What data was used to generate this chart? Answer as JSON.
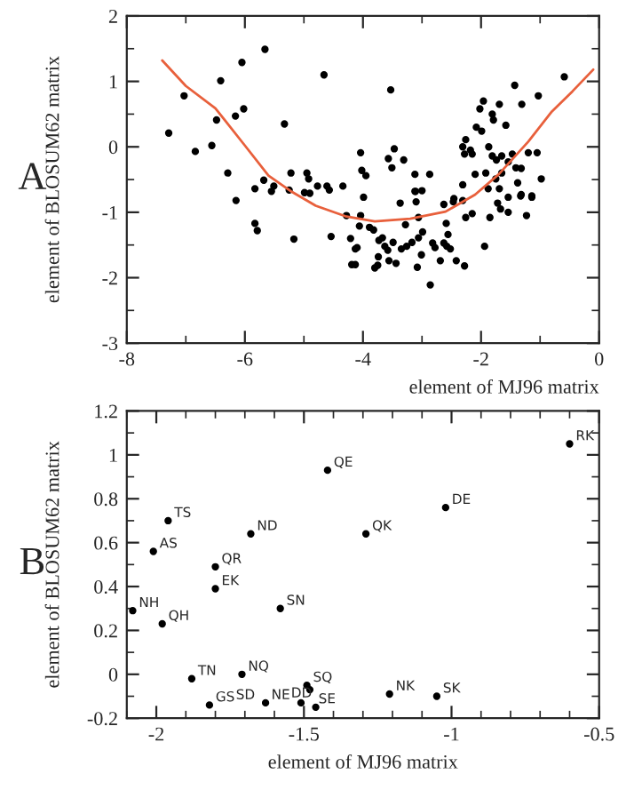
{
  "chart_data": [
    {
      "type": "scatter",
      "xlabel": "element of MJ96 matrix",
      "ylabel": "element of BLOSUM62 matrix",
      "xlim": [
        -8,
        0
      ],
      "ylim": [
        -3,
        2
      ],
      "xticks": [
        -8,
        -6,
        -4,
        -2,
        0
      ],
      "yticks": [
        -3,
        -2,
        -1,
        0,
        1,
        2
      ],
      "grid": false,
      "marker": "circle",
      "annotations": [
        "A"
      ],
      "series": [
        {
          "color": "#000000",
          "x": [
            -7.29,
            -7.03,
            -6.84,
            -6.56,
            -6.41,
            -6.48,
            -6.29,
            -6.15,
            -6.16,
            -6.05,
            -6.02,
            -5.66,
            -5.83,
            -5.68,
            -5.55,
            -5.51,
            -5.33,
            -5.25,
            -5.22,
            -4.66,
            -4.61,
            -4.57,
            -4.34,
            -4.77,
            -4.95,
            -4.92,
            -4.99,
            -4.9,
            -4.04,
            -4.02,
            -3.95,
            -3.99,
            -3.53,
            -3.57,
            -3.51,
            -3.47,
            -3.31,
            -3.12,
            -2.87,
            -3.11,
            -3.0,
            -2.31,
            -2.28,
            -2.26,
            -2.18,
            -2.15,
            -2.08,
            -1.99,
            -2.02,
            -1.96,
            -1.81,
            -1.79,
            -1.69,
            -1.58,
            -1.43,
            -1.31,
            -1.03,
            -0.59,
            -1.87,
            -1.81,
            -1.74,
            -1.65,
            -1.54,
            -1.47,
            -1.41,
            -1.32,
            -1.2,
            -1.05,
            -0.98,
            -1.38,
            -1.65,
            -1.92,
            -2.1,
            -1.75,
            -1.54,
            -1.33,
            -1.14,
            -1.69,
            -1.88,
            -2.31,
            -2.31,
            -2.46,
            -2.63,
            -5.83,
            -5.79,
            -5.17,
            -4.54,
            -4.28,
            -4.21,
            -4.19,
            -4.13,
            -4.13,
            -4.1,
            -4.06,
            -4.04,
            -3.89,
            -3.82,
            -3.8,
            -3.75,
            -3.74,
            -3.73,
            -3.67,
            -3.63,
            -3.58,
            -3.56,
            -3.49,
            -3.44,
            -3.37,
            -3.35,
            -3.28,
            -3.26,
            -3.17,
            -3.12,
            -3.1,
            -3.06,
            -3.06,
            -3.08,
            -3.01,
            -2.99,
            -2.86,
            -2.82,
            -2.78,
            -2.69,
            -2.63,
            -2.58,
            -2.59,
            -2.56,
            -2.52,
            -2.47,
            -2.42,
            -2.28,
            -2.26,
            -2.15,
            -1.94,
            -1.85,
            -1.72,
            -1.67,
            -1.54,
            -1.32,
            -1.23,
            -1.14
          ],
          "values": [
            0.21,
            0.78,
            -0.07,
            0.02,
            1.01,
            0.41,
            -0.4,
            -0.82,
            0.47,
            1.29,
            0.58,
            1.49,
            -0.64,
            -0.51,
            -0.68,
            -0.6,
            0.35,
            -0.66,
            -0.4,
            1.1,
            -0.6,
            -0.66,
            -0.6,
            -0.6,
            -0.4,
            -0.49,
            -0.7,
            -0.71,
            -0.09,
            -0.36,
            -0.44,
            -0.77,
            0.87,
            -0.18,
            -0.32,
            -0.03,
            -0.2,
            -0.42,
            -0.42,
            -0.68,
            -0.67,
            0.0,
            -0.11,
            0.11,
            -0.05,
            -0.11,
            0.3,
            0.24,
            0.58,
            0.7,
            0.5,
            0.41,
            0.65,
            0.33,
            0.94,
            0.65,
            0.78,
            1.07,
            0.0,
            -0.14,
            -0.2,
            -0.14,
            -0.23,
            -0.11,
            -0.32,
            -0.33,
            -0.09,
            -0.09,
            -0.49,
            -0.55,
            -0.4,
            -0.4,
            -0.42,
            -0.49,
            -0.77,
            -0.75,
            -0.75,
            -0.64,
            -0.64,
            -0.58,
            -0.82,
            -0.79,
            -0.88,
            -1.17,
            -1.28,
            -1.41,
            -1.37,
            -1.05,
            -1.4,
            -1.8,
            -1.8,
            -1.56,
            -1.54,
            -1.21,
            -1.05,
            -1.23,
            -1.27,
            -1.85,
            -1.81,
            -1.68,
            -1.43,
            -1.39,
            -1.52,
            -1.58,
            -1.74,
            -1.46,
            -1.78,
            -0.86,
            -1.56,
            -1.19,
            -1.52,
            -1.46,
            -0.68,
            -0.84,
            -1.08,
            -1.39,
            -1.84,
            -1.65,
            -1.3,
            -2.11,
            -1.47,
            -1.54,
            -1.74,
            -1.47,
            -1.52,
            -1.17,
            -1.34,
            -1.56,
            -0.84,
            -1.74,
            -1.82,
            -1.08,
            -1.02,
            -1.52,
            -1.08,
            -0.86,
            -0.95,
            -1.0,
            -0.73,
            -1.05,
            -0.77
          ]
        },
        {
          "type": "line",
          "color": "#e8603c",
          "marker": "none",
          "x": [
            -7.4,
            -7.0,
            -6.5,
            -6.0,
            -5.6,
            -5.2,
            -4.8,
            -4.3,
            -3.8,
            -3.2,
            -2.6,
            -2.1,
            -1.7,
            -1.2,
            -0.8,
            -0.45,
            -0.1
          ],
          "values": [
            1.32,
            0.93,
            0.59,
            0.02,
            -0.44,
            -0.69,
            -0.9,
            -1.06,
            -1.14,
            -1.1,
            -0.99,
            -0.73,
            -0.42,
            0.08,
            0.54,
            0.85,
            1.18
          ]
        }
      ]
    },
    {
      "type": "scatter",
      "xlabel": "element of MJ96 matrix",
      "ylabel": "element of BLOSUM62 matrix",
      "xlim": [
        -2.1,
        -0.5
      ],
      "ylim": [
        -0.2,
        1.2
      ],
      "xticks": [
        -2,
        -1.5,
        -1,
        -0.5
      ],
      "yticks": [
        -0.2,
        0,
        0.2,
        0.4,
        0.6,
        0.8,
        1,
        1.2
      ],
      "grid": false,
      "marker": "circle",
      "annotations": [
        "B",
        {
          "text": "RK",
          "x": -0.6,
          "y": 1.05
        },
        {
          "text": "QE",
          "x": -1.42,
          "y": 0.93
        },
        {
          "text": "DE",
          "x": -1.02,
          "y": 0.76
        },
        {
          "text": "QK",
          "x": -1.29,
          "y": 0.64
        },
        {
          "text": "ND",
          "x": -1.68,
          "y": 0.64
        },
        {
          "text": "TS",
          "x": -1.96,
          "y": 0.7
        },
        {
          "text": "AS",
          "x": -2.01,
          "y": 0.56
        },
        {
          "text": "QR",
          "x": -1.8,
          "y": 0.49
        },
        {
          "text": "EK",
          "x": -1.8,
          "y": 0.39
        },
        {
          "text": "SN",
          "x": -1.58,
          "y": 0.3
        },
        {
          "text": "NH",
          "x": -2.08,
          "y": 0.29
        },
        {
          "text": "QH",
          "x": -1.98,
          "y": 0.23
        },
        {
          "text": "TN",
          "x": -1.88,
          "y": -0.02
        },
        {
          "text": "NQ",
          "x": -1.71,
          "y": 0.0
        },
        {
          "text": "SQ",
          "x": -1.49,
          "y": -0.05
        },
        {
          "text": "SE",
          "x": -1.48,
          "y": -0.07
        },
        {
          "text": "NE",
          "x": -1.51,
          "y": -0.13
        },
        {
          "text": "DD",
          "x": -1.46,
          "y": -0.15
        },
        {
          "text": "SD",
          "x": -1.63,
          "y": -0.13
        },
        {
          "text": "GS",
          "x": -1.82,
          "y": -0.14
        },
        {
          "text": "NK",
          "x": -1.21,
          "y": -0.09
        },
        {
          "text": "SK",
          "x": -1.05,
          "y": -0.1
        }
      ],
      "series": [
        {
          "color": "#000000",
          "x": [
            -0.6,
            -1.42,
            -1.02,
            -1.29,
            -1.68,
            -1.96,
            -2.01,
            -1.8,
            -1.8,
            -1.58,
            -2.08,
            -1.98,
            -1.88,
            -1.71,
            -1.49,
            -1.48,
            -1.51,
            -1.46,
            -1.63,
            -1.82,
            -1.21,
            -1.05
          ],
          "values": [
            1.05,
            0.93,
            0.76,
            0.64,
            0.64,
            0.7,
            0.56,
            0.49,
            0.39,
            0.3,
            0.29,
            0.23,
            -0.02,
            0.0,
            -0.05,
            -0.07,
            -0.13,
            -0.15,
            -0.13,
            -0.14,
            -0.09,
            -0.1
          ]
        }
      ]
    }
  ]
}
